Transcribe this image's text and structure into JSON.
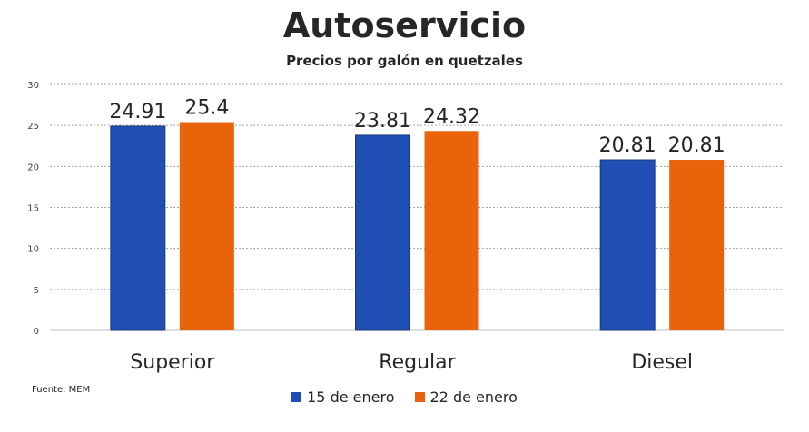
{
  "chart_data": {
    "type": "bar",
    "title": "Autoservicio",
    "subtitle": "Precios por galón en quetzales",
    "categories": [
      "Superior",
      "Regular",
      "Diesel"
    ],
    "series": [
      {
        "name": "15 de enero",
        "values": [
          24.91,
          23.81,
          20.81
        ],
        "labels": [
          "24.91",
          "23.81",
          "20.81"
        ],
        "color": "#1f4eb4"
      },
      {
        "name": "22 de enero",
        "values": [
          25.4,
          24.32,
          20.81
        ],
        "labels": [
          "25.4",
          "24.32",
          "20.81"
        ],
        "color": "#e8630a"
      }
    ],
    "ylim": [
      0,
      30
    ],
    "yticks": [
      "0",
      "5",
      "10",
      "15",
      "20",
      "25",
      "30"
    ],
    "grid": true,
    "legend": "bottom",
    "source": "Fuente: MEM"
  }
}
